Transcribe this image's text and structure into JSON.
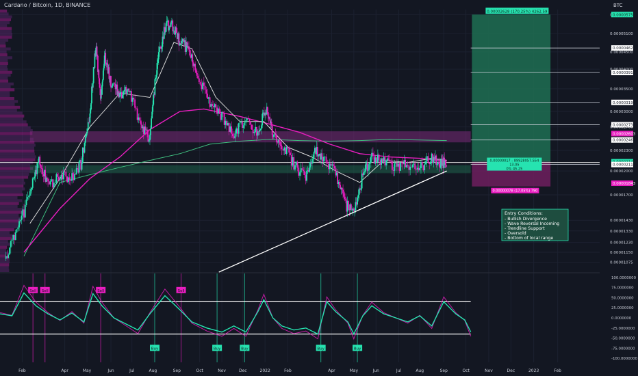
{
  "header": {
    "title": "Cardano / Bitcoin, 1D, BINANCE",
    "currency": "BTC"
  },
  "colors": {
    "bg": "#131722",
    "teal": "#26e3b0",
    "magenta": "#e91ec0",
    "white": "#e6e6e6",
    "profit_zone": "#1f6e52",
    "loss_zone": "#6e1f5e",
    "range_band": "#7a2a78",
    "grid": "#1c2130"
  },
  "chart_data": {
    "type": "line",
    "title": "Cardano / Bitcoin, 1D, BINANCE",
    "price_axis": {
      "scale": "log",
      "currency": "BTC",
      "ticks": [
        "0.00005800",
        "0.00005100",
        "0.00004500",
        "0.00004000",
        "0.00003500",
        "0.00003000",
        "0.00002700",
        "0.00002300",
        "0.00002000",
        "0.00001700",
        "0.00001430",
        "0.00001330",
        "0.00001230",
        "0.00001150",
        "0.00001075"
      ],
      "tick_values": [
        5.8e-05,
        5.1e-05,
        4.5e-05,
        4e-05,
        3.5e-05,
        3e-05,
        2.7e-05,
        2.3e-05,
        2e-05,
        1.7e-05,
        1.43e-05,
        1.33e-05,
        1.23e-05,
        1.15e-05,
        1.075e-05
      ],
      "range": [
        1.005e-05,
        6e-05
      ]
    },
    "time_axis": {
      "labels": [
        "Feb",
        "Apr",
        "May",
        "Jun",
        "Jul",
        "Aug",
        "Sep",
        "Oct",
        "Nov",
        "Dec",
        "2022",
        "Feb",
        "Apr",
        "May",
        "Jun",
        "Jul",
        "Aug",
        "Sep",
        "Oct",
        "Nov",
        "Dec",
        "2023",
        "Feb"
      ],
      "label_pos": [
        0.037,
        0.108,
        0.145,
        0.185,
        0.22,
        0.255,
        0.295,
        0.333,
        0.37,
        0.405,
        0.442,
        0.48,
        0.553,
        0.59,
        0.627,
        0.665,
        0.7,
        0.74,
        0.777,
        0.815,
        0.852,
        0.89,
        0.93
      ]
    },
    "price_series": [
      [
        0.01,
        1.1e-05
      ],
      [
        0.03,
        1.35e-05
      ],
      [
        0.05,
        1.7e-05
      ],
      [
        0.065,
        2.2e-05
      ],
      [
        0.08,
        1.8e-05
      ],
      [
        0.1,
        1.95e-05
      ],
      [
        0.12,
        1.9e-05
      ],
      [
        0.135,
        2.1e-05
      ],
      [
        0.15,
        3e-05
      ],
      [
        0.16,
        4.7e-05
      ],
      [
        0.168,
        3.3e-05
      ],
      [
        0.175,
        4.4e-05
      ],
      [
        0.185,
        3.6e-05
      ],
      [
        0.2,
        3.4e-05
      ],
      [
        0.215,
        3.5e-05
      ],
      [
        0.235,
        2.7e-05
      ],
      [
        0.25,
        2.5e-05
      ],
      [
        0.262,
        4.2e-05
      ],
      [
        0.275,
        5.3e-05
      ],
      [
        0.285,
        5.5e-05
      ],
      [
        0.3,
        4.8e-05
      ],
      [
        0.315,
        4.6e-05
      ],
      [
        0.33,
        3.8e-05
      ],
      [
        0.35,
        3.2e-05
      ],
      [
        0.37,
        2.9e-05
      ],
      [
        0.39,
        2.6e-05
      ],
      [
        0.41,
        2.8e-05
      ],
      [
        0.43,
        2.6e-05
      ],
      [
        0.445,
        3.1e-05
      ],
      [
        0.455,
        2.6e-05
      ],
      [
        0.47,
        2.4e-05
      ],
      [
        0.49,
        2.1e-05
      ],
      [
        0.51,
        1.9e-05
      ],
      [
        0.525,
        2.3e-05
      ],
      [
        0.54,
        2.2e-05
      ],
      [
        0.56,
        1.95e-05
      ],
      [
        0.575,
        1.6e-05
      ],
      [
        0.59,
        1.5e-05
      ],
      [
        0.605,
        1.95e-05
      ],
      [
        0.62,
        2.2e-05
      ],
      [
        0.64,
        2.15e-05
      ],
      [
        0.66,
        2.05e-05
      ],
      [
        0.68,
        2.1e-05
      ],
      [
        0.7,
        2.03e-05
      ],
      [
        0.72,
        2.2e-05
      ],
      [
        0.735,
        2.08e-05
      ],
      [
        0.745,
        2.14e-05
      ]
    ],
    "ma_slow_series": [
      [
        0.04,
        1.15e-05
      ],
      [
        0.1,
        1.55e-05
      ],
      [
        0.15,
        1.9e-05
      ],
      [
        0.2,
        2.2e-05
      ],
      [
        0.25,
        2.65e-05
      ],
      [
        0.3,
        3e-05
      ],
      [
        0.34,
        3.05e-05
      ],
      [
        0.4,
        2.9e-05
      ],
      [
        0.45,
        2.75e-05
      ],
      [
        0.5,
        2.6e-05
      ],
      [
        0.55,
        2.4e-05
      ],
      [
        0.6,
        2.25e-05
      ],
      [
        0.65,
        2.2e-05
      ],
      [
        0.7,
        2.18e-05
      ],
      [
        0.745,
        2.14e-05
      ]
    ],
    "ma_mid_series": [
      [
        0.04,
        1.12e-05
      ],
      [
        0.1,
        1.85e-05
      ],
      [
        0.15,
        1.95e-05
      ],
      [
        0.2,
        2.05e-05
      ],
      [
        0.25,
        2.15e-05
      ],
      [
        0.3,
        2.25e-05
      ],
      [
        0.35,
        2.4e-05
      ],
      [
        0.4,
        2.45e-05
      ],
      [
        0.45,
        2.48e-05
      ],
      [
        0.5,
        2.46e-05
      ],
      [
        0.55,
        2.45e-05
      ],
      [
        0.6,
        2.46e-05
      ],
      [
        0.65,
        2.48e-05
      ],
      [
        0.7,
        2.47e-05
      ],
      [
        0.745,
        2.46e-05
      ]
    ],
    "ma_fast_series": [
      [
        0.05,
        1.4e-05
      ],
      [
        0.1,
        1.9e-05
      ],
      [
        0.15,
        2.7e-05
      ],
      [
        0.2,
        3.4e-05
      ],
      [
        0.25,
        3.3e-05
      ],
      [
        0.29,
        4.8e-05
      ],
      [
        0.32,
        4.6e-05
      ],
      [
        0.36,
        3.3e-05
      ],
      [
        0.4,
        2.8e-05
      ],
      [
        0.44,
        2.8e-05
      ],
      [
        0.48,
        2.35e-05
      ],
      [
        0.52,
        2.2e-05
      ],
      [
        0.56,
        2e-05
      ],
      [
        0.6,
        1.85e-05
      ],
      [
        0.64,
        2.15e-05
      ],
      [
        0.68,
        2.12e-05
      ],
      [
        0.72,
        2.18e-05
      ],
      [
        0.745,
        2.15e-05
      ]
    ],
    "trendline": [
      [
        0.365,
        1.005e-05
      ],
      [
        0.745,
        2e-05
      ]
    ],
    "support_line": 2.12e-05,
    "resistance_band": [
      2.43e-05,
      2.62e-05
    ],
    "support_band": [
      1.97e-05,
      2.08e-05
    ],
    "right_labels": [
      {
        "price": "0.00005751",
        "value": 5.8e-05,
        "style": "teal"
      },
      {
        "price": "0.00004623",
        "value": 4.62e-05,
        "style": "white"
      },
      {
        "price": "0.00003910",
        "value": 3.91e-05,
        "style": "white"
      },
      {
        "price": "0.00003194",
        "value": 3.19e-05,
        "style": "white"
      },
      {
        "price": "0.00002739",
        "value": 2.74e-05,
        "style": "white"
      },
      {
        "price": "0.00002603",
        "value": 2.58e-05,
        "style": "magenta"
      },
      {
        "price": "0.00002467",
        "value": 2.47e-05,
        "style": "white"
      },
      {
        "price": "0.00002148",
        "value": 2.13e-05,
        "style": "teal"
      },
      {
        "price": "0.00002111",
        "value": 2.09e-05,
        "style": "white"
      },
      {
        "price": "0.00001843",
        "value": 1.84e-05,
        "style": "magenta"
      }
    ],
    "position_tool": {
      "target_label": "0.00002628 (170.25%) 4262.59",
      "entry_label": "0.00000017 - 89928057.554",
      "entry_label_2": "13.05",
      "entry_label_3": "0% 45.25",
      "stop_label": "0.00000078 (17.05%) 790",
      "target": 5.8e-05,
      "entry": 2.13e-05,
      "stop": 1.8e-05,
      "x_start": 0.787,
      "x_end": 0.918
    },
    "notes": {
      "title": "Entry Conditions:",
      "items": [
        "- Bullish Divergence",
        "- Wave Reversal Incoming",
        "- Trendline Support",
        "- Oversold",
        "- Bottom of local range"
      ]
    },
    "oscillator": {
      "ticks": [
        "100.0000000",
        "75.0000000",
        "50.0000000",
        "25.0000000",
        "0.0000000",
        "-25.0000000",
        "-50.0000000",
        "-75.0000000",
        "-100.0000000"
      ],
      "tick_values": [
        100,
        75,
        50,
        25,
        0,
        -25,
        -50,
        -75,
        -100
      ],
      "range": [
        -110,
        110
      ],
      "overbought": 40,
      "oversold": -40,
      "series": [
        [
          0.0,
          10
        ],
        [
          0.02,
          5
        ],
        [
          0.04,
          62
        ],
        [
          0.06,
          30
        ],
        [
          0.08,
          10
        ],
        [
          0.1,
          -5
        ],
        [
          0.12,
          12
        ],
        [
          0.14,
          -10
        ],
        [
          0.155,
          60
        ],
        [
          0.17,
          30
        ],
        [
          0.19,
          0
        ],
        [
          0.21,
          -15
        ],
        [
          0.23,
          -30
        ],
        [
          0.25,
          10
        ],
        [
          0.275,
          55
        ],
        [
          0.3,
          20
        ],
        [
          0.32,
          -10
        ],
        [
          0.345,
          -25
        ],
        [
          0.37,
          -35
        ],
        [
          0.39,
          -20
        ],
        [
          0.41,
          -35
        ],
        [
          0.43,
          15
        ],
        [
          0.44,
          45
        ],
        [
          0.455,
          0
        ],
        [
          0.47,
          -20
        ],
        [
          0.49,
          -30
        ],
        [
          0.51,
          -25
        ],
        [
          0.53,
          -40
        ],
        [
          0.545,
          40
        ],
        [
          0.56,
          15
        ],
        [
          0.58,
          -10
        ],
        [
          0.59,
          -40
        ],
        [
          0.605,
          5
        ],
        [
          0.62,
          30
        ],
        [
          0.64,
          10
        ],
        [
          0.66,
          0
        ],
        [
          0.68,
          -10
        ],
        [
          0.7,
          5
        ],
        [
          0.72,
          -20
        ],
        [
          0.74,
          40
        ],
        [
          0.76,
          10
        ],
        [
          0.775,
          -5
        ],
        [
          0.785,
          -35
        ]
      ],
      "signals": [
        {
          "label": "Sell",
          "x": 0.055,
          "y": 68
        },
        {
          "label": "Sell",
          "x": 0.075,
          "y": 68
        },
        {
          "label": "Sell",
          "x": 0.168,
          "y": 68
        },
        {
          "label": "Sell",
          "x": 0.302,
          "y": 68
        },
        {
          "label": "Buy",
          "x": 0.258,
          "y": -75
        },
        {
          "label": "Buy",
          "x": 0.362,
          "y": -75
        },
        {
          "label": "Buy",
          "x": 0.408,
          "y": -75
        },
        {
          "label": "Buy",
          "x": 0.535,
          "y": -75
        },
        {
          "label": "Buy",
          "x": 0.596,
          "y": -75
        }
      ]
    }
  }
}
